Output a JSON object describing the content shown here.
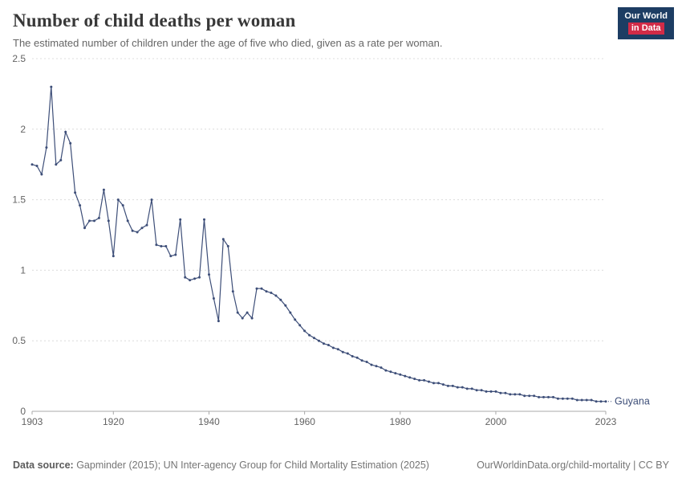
{
  "header": {
    "title": "Number of child deaths per woman",
    "subtitle": "The estimated number of children under the age of five who died, given as a rate per woman.",
    "logo": {
      "line1": "Our World",
      "line2": "in Data"
    }
  },
  "colors": {
    "line": "#3d4e78",
    "logo_navy": "#1d3d63",
    "logo_red": "#d12b47",
    "gridline": "#dcdcdc",
    "axis": "#a8a8a8",
    "tick_text": "#636363"
  },
  "chart_data": {
    "type": "line",
    "title": "Number of child deaths per woman",
    "series_label": "Guyana",
    "xlabel": "",
    "ylabel": "",
    "ylim": [
      0,
      2.5
    ],
    "yticks": [
      0,
      0.5,
      1,
      1.5,
      2,
      2.5
    ],
    "xticks": [
      1903,
      1920,
      1940,
      1960,
      1980,
      2000,
      2023
    ],
    "grid": "horizontal-dashed",
    "legend_position": "end-of-line",
    "line_color": "#3d4e78",
    "years": [
      1903,
      1904,
      1905,
      1906,
      1907,
      1908,
      1909,
      1910,
      1911,
      1912,
      1913,
      1914,
      1915,
      1916,
      1917,
      1918,
      1919,
      1920,
      1921,
      1922,
      1923,
      1924,
      1925,
      1926,
      1927,
      1928,
      1929,
      1930,
      1931,
      1932,
      1933,
      1934,
      1935,
      1936,
      1937,
      1938,
      1939,
      1940,
      1941,
      1942,
      1943,
      1944,
      1945,
      1946,
      1947,
      1948,
      1949,
      1950,
      1951,
      1952,
      1953,
      1954,
      1955,
      1956,
      1957,
      1958,
      1959,
      1960,
      1961,
      1962,
      1963,
      1964,
      1965,
      1966,
      1967,
      1968,
      1969,
      1970,
      1971,
      1972,
      1973,
      1974,
      1975,
      1976,
      1977,
      1978,
      1979,
      1980,
      1981,
      1982,
      1983,
      1984,
      1985,
      1986,
      1987,
      1988,
      1989,
      1990,
      1991,
      1992,
      1993,
      1994,
      1995,
      1996,
      1997,
      1998,
      1999,
      2000,
      2001,
      2002,
      2003,
      2004,
      2005,
      2006,
      2007,
      2008,
      2009,
      2010,
      2011,
      2012,
      2013,
      2014,
      2015,
      2016,
      2017,
      2018,
      2019,
      2020,
      2021,
      2022,
      2023
    ],
    "values": [
      1.75,
      1.74,
      1.68,
      1.87,
      2.3,
      1.75,
      1.78,
      1.98,
      1.9,
      1.55,
      1.46,
      1.3,
      1.35,
      1.35,
      1.37,
      1.57,
      1.35,
      1.1,
      1.5,
      1.46,
      1.35,
      1.28,
      1.27,
      1.3,
      1.32,
      1.5,
      1.18,
      1.17,
      1.17,
      1.1,
      1.11,
      1.36,
      0.95,
      0.93,
      0.94,
      0.95,
      1.36,
      0.97,
      0.8,
      0.64,
      1.22,
      1.17,
      0.85,
      0.7,
      0.66,
      0.7,
      0.66,
      0.87,
      0.87,
      0.85,
      0.84,
      0.82,
      0.79,
      0.75,
      0.7,
      0.65,
      0.61,
      0.57,
      0.54,
      0.52,
      0.5,
      0.48,
      0.47,
      0.45,
      0.44,
      0.42,
      0.41,
      0.39,
      0.38,
      0.36,
      0.35,
      0.33,
      0.32,
      0.31,
      0.29,
      0.28,
      0.27,
      0.26,
      0.25,
      0.24,
      0.23,
      0.22,
      0.22,
      0.21,
      0.2,
      0.2,
      0.19,
      0.18,
      0.18,
      0.17,
      0.17,
      0.16,
      0.16,
      0.15,
      0.15,
      0.14,
      0.14,
      0.14,
      0.13,
      0.13,
      0.12,
      0.12,
      0.12,
      0.11,
      0.11,
      0.11,
      0.1,
      0.1,
      0.1,
      0.1,
      0.09,
      0.09,
      0.09,
      0.09,
      0.08,
      0.08,
      0.08,
      0.08,
      0.07,
      0.07,
      0.07
    ]
  },
  "footer": {
    "source_label": "Data source:",
    "source_text": " Gapminder (2015); UN Inter-agency Group for Child Mortality Estimation (2025)",
    "license_text": "OurWorldinData.org/child-mortality | CC BY"
  }
}
